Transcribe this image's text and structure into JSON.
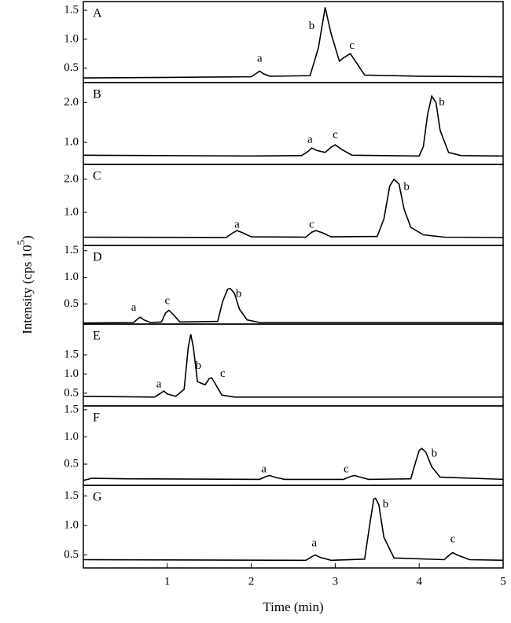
{
  "chart_data": {
    "type": "line",
    "xlabel": "Time (min)",
    "ylabel": {
      "text": "Intensity (cps 10",
      "superscript": "5",
      "close": ")"
    },
    "xlim": [
      0,
      5
    ],
    "xticks": [
      1,
      2,
      3,
      4,
      5
    ],
    "color": "#000000",
    "panels": [
      {
        "title": "A",
        "ylim": [
          0.25,
          1.65
        ],
        "yticks": [
          0.5,
          {
            "value": 1,
            "label": "1.0"
          },
          1.5
        ],
        "x": [
          0,
          1.0,
          2.0,
          2.05,
          2.1,
          2.15,
          2.22,
          2.7,
          2.8,
          2.88,
          2.95,
          3.05,
          3.1,
          3.18,
          3.25,
          3.35,
          4.0,
          5
        ],
        "values": [
          0.33,
          0.34,
          0.35,
          0.4,
          0.45,
          0.4,
          0.36,
          0.37,
          0.85,
          1.55,
          1.1,
          0.62,
          0.68,
          0.75,
          0.6,
          0.38,
          0.36,
          0.35
        ],
        "labels": [
          {
            "text": "a",
            "x": 2.1,
            "y": 0.66
          },
          {
            "text": "b",
            "x": 2.72,
            "y": 1.22
          },
          {
            "text": "c",
            "x": 3.2,
            "y": 0.88
          }
        ]
      },
      {
        "title": "B",
        "ylim": [
          0.45,
          2.5
        ],
        "yticks": [
          {
            "value": 1,
            "label": "1.0"
          },
          {
            "value": 2,
            "label": "2.0"
          }
        ],
        "x": [
          0,
          2.0,
          2.6,
          2.68,
          2.72,
          2.78,
          2.88,
          2.95,
          3.0,
          3.08,
          3.2,
          4.0,
          4.05,
          4.1,
          4.15,
          4.2,
          4.25,
          4.35,
          4.5,
          5
        ],
        "values": [
          0.68,
          0.66,
          0.67,
          0.78,
          0.86,
          0.8,
          0.75,
          0.88,
          0.94,
          0.82,
          0.68,
          0.66,
          0.9,
          1.7,
          2.16,
          2.0,
          1.3,
          0.75,
          0.67,
          0.66
        ],
        "labels": [
          {
            "text": "a",
            "x": 2.7,
            "y": 1.06
          },
          {
            "text": "c",
            "x": 3.0,
            "y": 1.18
          },
          {
            "text": "b",
            "x": 4.27,
            "y": 2.0
          }
        ]
      },
      {
        "title": "C",
        "ylim": [
          0,
          2.45
        ],
        "yticks": [
          {
            "value": 1,
            "label": "1.0"
          },
          {
            "value": 2,
            "label": "2.0"
          }
        ],
        "x": [
          0,
          1.7,
          1.78,
          1.83,
          1.9,
          2.0,
          2.65,
          2.72,
          2.77,
          2.85,
          2.95,
          3.5,
          3.58,
          3.65,
          3.7,
          3.76,
          3.82,
          3.9,
          4.05,
          4.3,
          5
        ],
        "values": [
          0.25,
          0.24,
          0.38,
          0.45,
          0.38,
          0.26,
          0.25,
          0.4,
          0.45,
          0.38,
          0.26,
          0.27,
          0.8,
          1.8,
          2.0,
          1.85,
          1.1,
          0.55,
          0.32,
          0.25,
          0.24
        ],
        "labels": [
          {
            "text": "a",
            "x": 1.83,
            "y": 0.62
          },
          {
            "text": "c",
            "x": 2.72,
            "y": 0.62
          },
          {
            "text": "b",
            "x": 3.85,
            "y": 1.76
          }
        ]
      },
      {
        "title": "D",
        "ylim": [
          0.12,
          1.6
        ],
        "yticks": [
          0.5,
          {
            "value": 1,
            "label": "1.0"
          },
          1.5
        ],
        "x": [
          0,
          0.6,
          0.65,
          0.68,
          0.72,
          0.8,
          0.93,
          0.98,
          1.02,
          1.07,
          1.15,
          1.6,
          1.66,
          1.72,
          1.75,
          1.8,
          1.86,
          1.95,
          2.1,
          5
        ],
        "values": [
          0.14,
          0.15,
          0.22,
          0.25,
          0.2,
          0.15,
          0.16,
          0.33,
          0.38,
          0.3,
          0.16,
          0.17,
          0.55,
          0.78,
          0.79,
          0.7,
          0.4,
          0.2,
          0.15,
          0.15
        ],
        "labels": [
          {
            "text": "a",
            "x": 0.6,
            "y": 0.42
          },
          {
            "text": "c",
            "x": 1.0,
            "y": 0.55
          },
          {
            "text": "b",
            "x": 1.85,
            "y": 0.68
          }
        ]
      },
      {
        "title": "E",
        "ylim": [
          0.17,
          2.3
        ],
        "yticks": [
          0.5,
          {
            "value": 1,
            "label": "1.0"
          },
          1.5
        ],
        "x": [
          0,
          0.85,
          0.92,
          0.96,
          1.0,
          1.1,
          1.2,
          1.25,
          1.28,
          1.31,
          1.36,
          1.45,
          1.5,
          1.53,
          1.57,
          1.65,
          1.8,
          5
        ],
        "values": [
          0.42,
          0.4,
          0.5,
          0.56,
          0.48,
          0.42,
          0.6,
          1.7,
          2.03,
          1.7,
          0.8,
          0.72,
          0.88,
          0.9,
          0.75,
          0.45,
          0.4,
          0.4
        ],
        "labels": [
          {
            "text": "a",
            "x": 0.9,
            "y": 0.72
          },
          {
            "text": "b",
            "x": 1.37,
            "y": 1.2
          },
          {
            "text": "c",
            "x": 1.66,
            "y": 1.0
          }
        ]
      },
      {
        "title": "F",
        "ylim": [
          0.11,
          1.57
        ],
        "yticks": [
          0.5,
          {
            "value": 1,
            "label": "1.0"
          },
          1.5
        ],
        "x": [
          0,
          0.1,
          0.5,
          2.1,
          2.17,
          2.22,
          2.28,
          2.4,
          3.1,
          3.18,
          3.23,
          3.3,
          3.4,
          3.9,
          3.96,
          4.0,
          4.03,
          4.08,
          4.15,
          4.25,
          5
        ],
        "values": [
          0.2,
          0.24,
          0.23,
          0.22,
          0.27,
          0.29,
          0.26,
          0.22,
          0.22,
          0.27,
          0.29,
          0.26,
          0.22,
          0.23,
          0.55,
          0.75,
          0.79,
          0.72,
          0.45,
          0.26,
          0.22
        ],
        "labels": [
          {
            "text": "a",
            "x": 2.15,
            "y": 0.4
          },
          {
            "text": "c",
            "x": 3.13,
            "y": 0.4
          },
          {
            "text": "b",
            "x": 4.18,
            "y": 0.69
          }
        ]
      },
      {
        "title": "G",
        "ylim": [
          0.28,
          1.68
        ],
        "yticks": [
          0.5,
          {
            "value": 1,
            "label": "1.0"
          },
          1.5
        ],
        "x": [
          0,
          2.65,
          2.72,
          2.76,
          2.82,
          2.95,
          3.35,
          3.42,
          3.46,
          3.48,
          3.52,
          3.58,
          3.7,
          4.3,
          4.36,
          4.4,
          4.45,
          4.6,
          5
        ],
        "values": [
          0.42,
          0.41,
          0.47,
          0.5,
          0.46,
          0.41,
          0.43,
          1.1,
          1.45,
          1.46,
          1.35,
          0.8,
          0.45,
          0.42,
          0.5,
          0.54,
          0.5,
          0.42,
          0.41
        ],
        "labels": [
          {
            "text": "a",
            "x": 2.75,
            "y": 0.69
          },
          {
            "text": "b",
            "x": 3.6,
            "y": 1.35
          },
          {
            "text": "c",
            "x": 4.4,
            "y": 0.76
          }
        ]
      }
    ]
  }
}
